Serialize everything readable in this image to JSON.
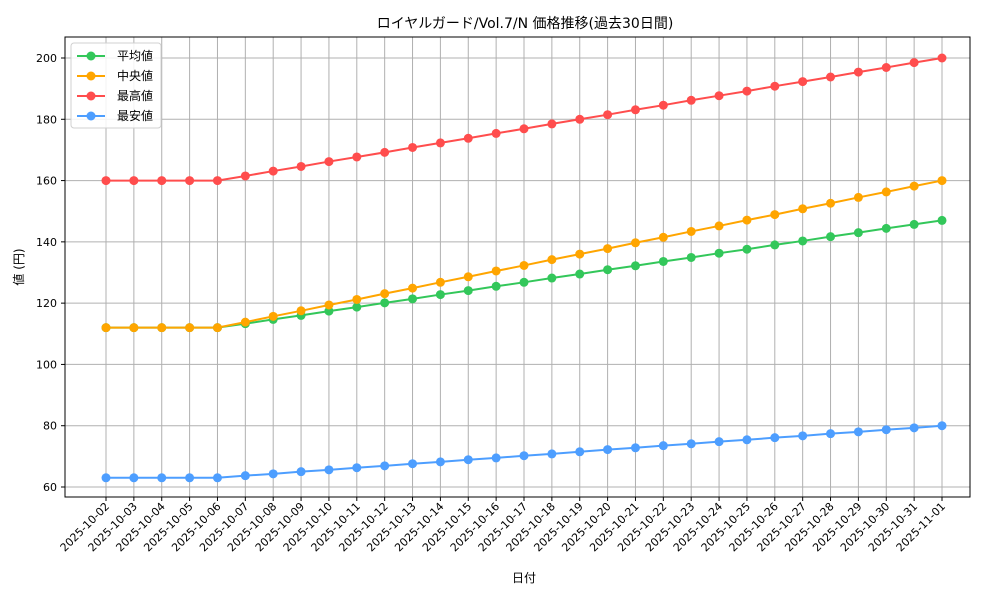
{
  "chart_data": {
    "type": "line",
    "title": "ロイヤルガード/Vol.7/N 価格推移(過去30日間)",
    "xlabel": "日付",
    "ylabel": "値 (円)",
    "ylim": [
      56,
      207
    ],
    "yticks": [
      60,
      80,
      100,
      120,
      140,
      160,
      180,
      200
    ],
    "grid": true,
    "legend_position": "upper left",
    "categories": [
      "2025-10-02",
      "2025-10-03",
      "2025-10-04",
      "2025-10-05",
      "2025-10-06",
      "2025-10-07",
      "2025-10-08",
      "2025-10-09",
      "2025-10-10",
      "2025-10-11",
      "2025-10-12",
      "2025-10-13",
      "2025-10-14",
      "2025-10-15",
      "2025-10-16",
      "2025-10-17",
      "2025-10-18",
      "2025-10-19",
      "2025-10-20",
      "2025-10-21",
      "2025-10-22",
      "2025-10-23",
      "2025-10-24",
      "2025-10-25",
      "2025-10-26",
      "2025-10-27",
      "2025-10-28",
      "2025-10-29",
      "2025-10-30",
      "2025-10-31",
      "2025-11-01"
    ],
    "series": [
      {
        "name": "平均値",
        "color": "#33c75a",
        "values": [
          112,
          112,
          112,
          112,
          112,
          113.3,
          114.7,
          116.0,
          117.4,
          118.7,
          120.1,
          121.4,
          122.8,
          124.1,
          125.5,
          126.8,
          128.2,
          129.5,
          130.9,
          132.2,
          133.6,
          134.9,
          136.3,
          137.6,
          139.0,
          140.3,
          141.7,
          143.0,
          144.4,
          145.7,
          147
        ]
      },
      {
        "name": "中央値",
        "color": "#ffa500",
        "values": [
          112,
          112,
          112,
          112,
          112,
          113.8,
          115.7,
          117.5,
          119.4,
          121.2,
          123.1,
          124.9,
          126.8,
          128.6,
          130.5,
          132.3,
          134.2,
          136.0,
          137.8,
          139.7,
          141.5,
          143.4,
          145.2,
          147.1,
          148.9,
          150.8,
          152.6,
          154.5,
          156.3,
          158.2,
          160
        ]
      },
      {
        "name": "最高値",
        "color": "#ff4d4d",
        "values": [
          160,
          160,
          160,
          160,
          160,
          161.5,
          163.1,
          164.6,
          166.2,
          167.7,
          169.2,
          170.8,
          172.3,
          173.8,
          175.4,
          176.9,
          178.5,
          180.0,
          181.5,
          183.1,
          184.6,
          186.2,
          187.7,
          189.2,
          190.8,
          192.3,
          193.8,
          195.4,
          196.9,
          198.5,
          200
        ]
      },
      {
        "name": "最安値",
        "color": "#4d9eff",
        "values": [
          63,
          63,
          63,
          63,
          63,
          63.7,
          64.3,
          65.0,
          65.6,
          66.3,
          66.9,
          67.6,
          68.2,
          68.9,
          69.5,
          70.2,
          70.8,
          71.5,
          72.2,
          72.8,
          73.5,
          74.1,
          74.8,
          75.4,
          76.1,
          76.7,
          77.4,
          78.0,
          78.7,
          79.3,
          80
        ]
      }
    ]
  }
}
